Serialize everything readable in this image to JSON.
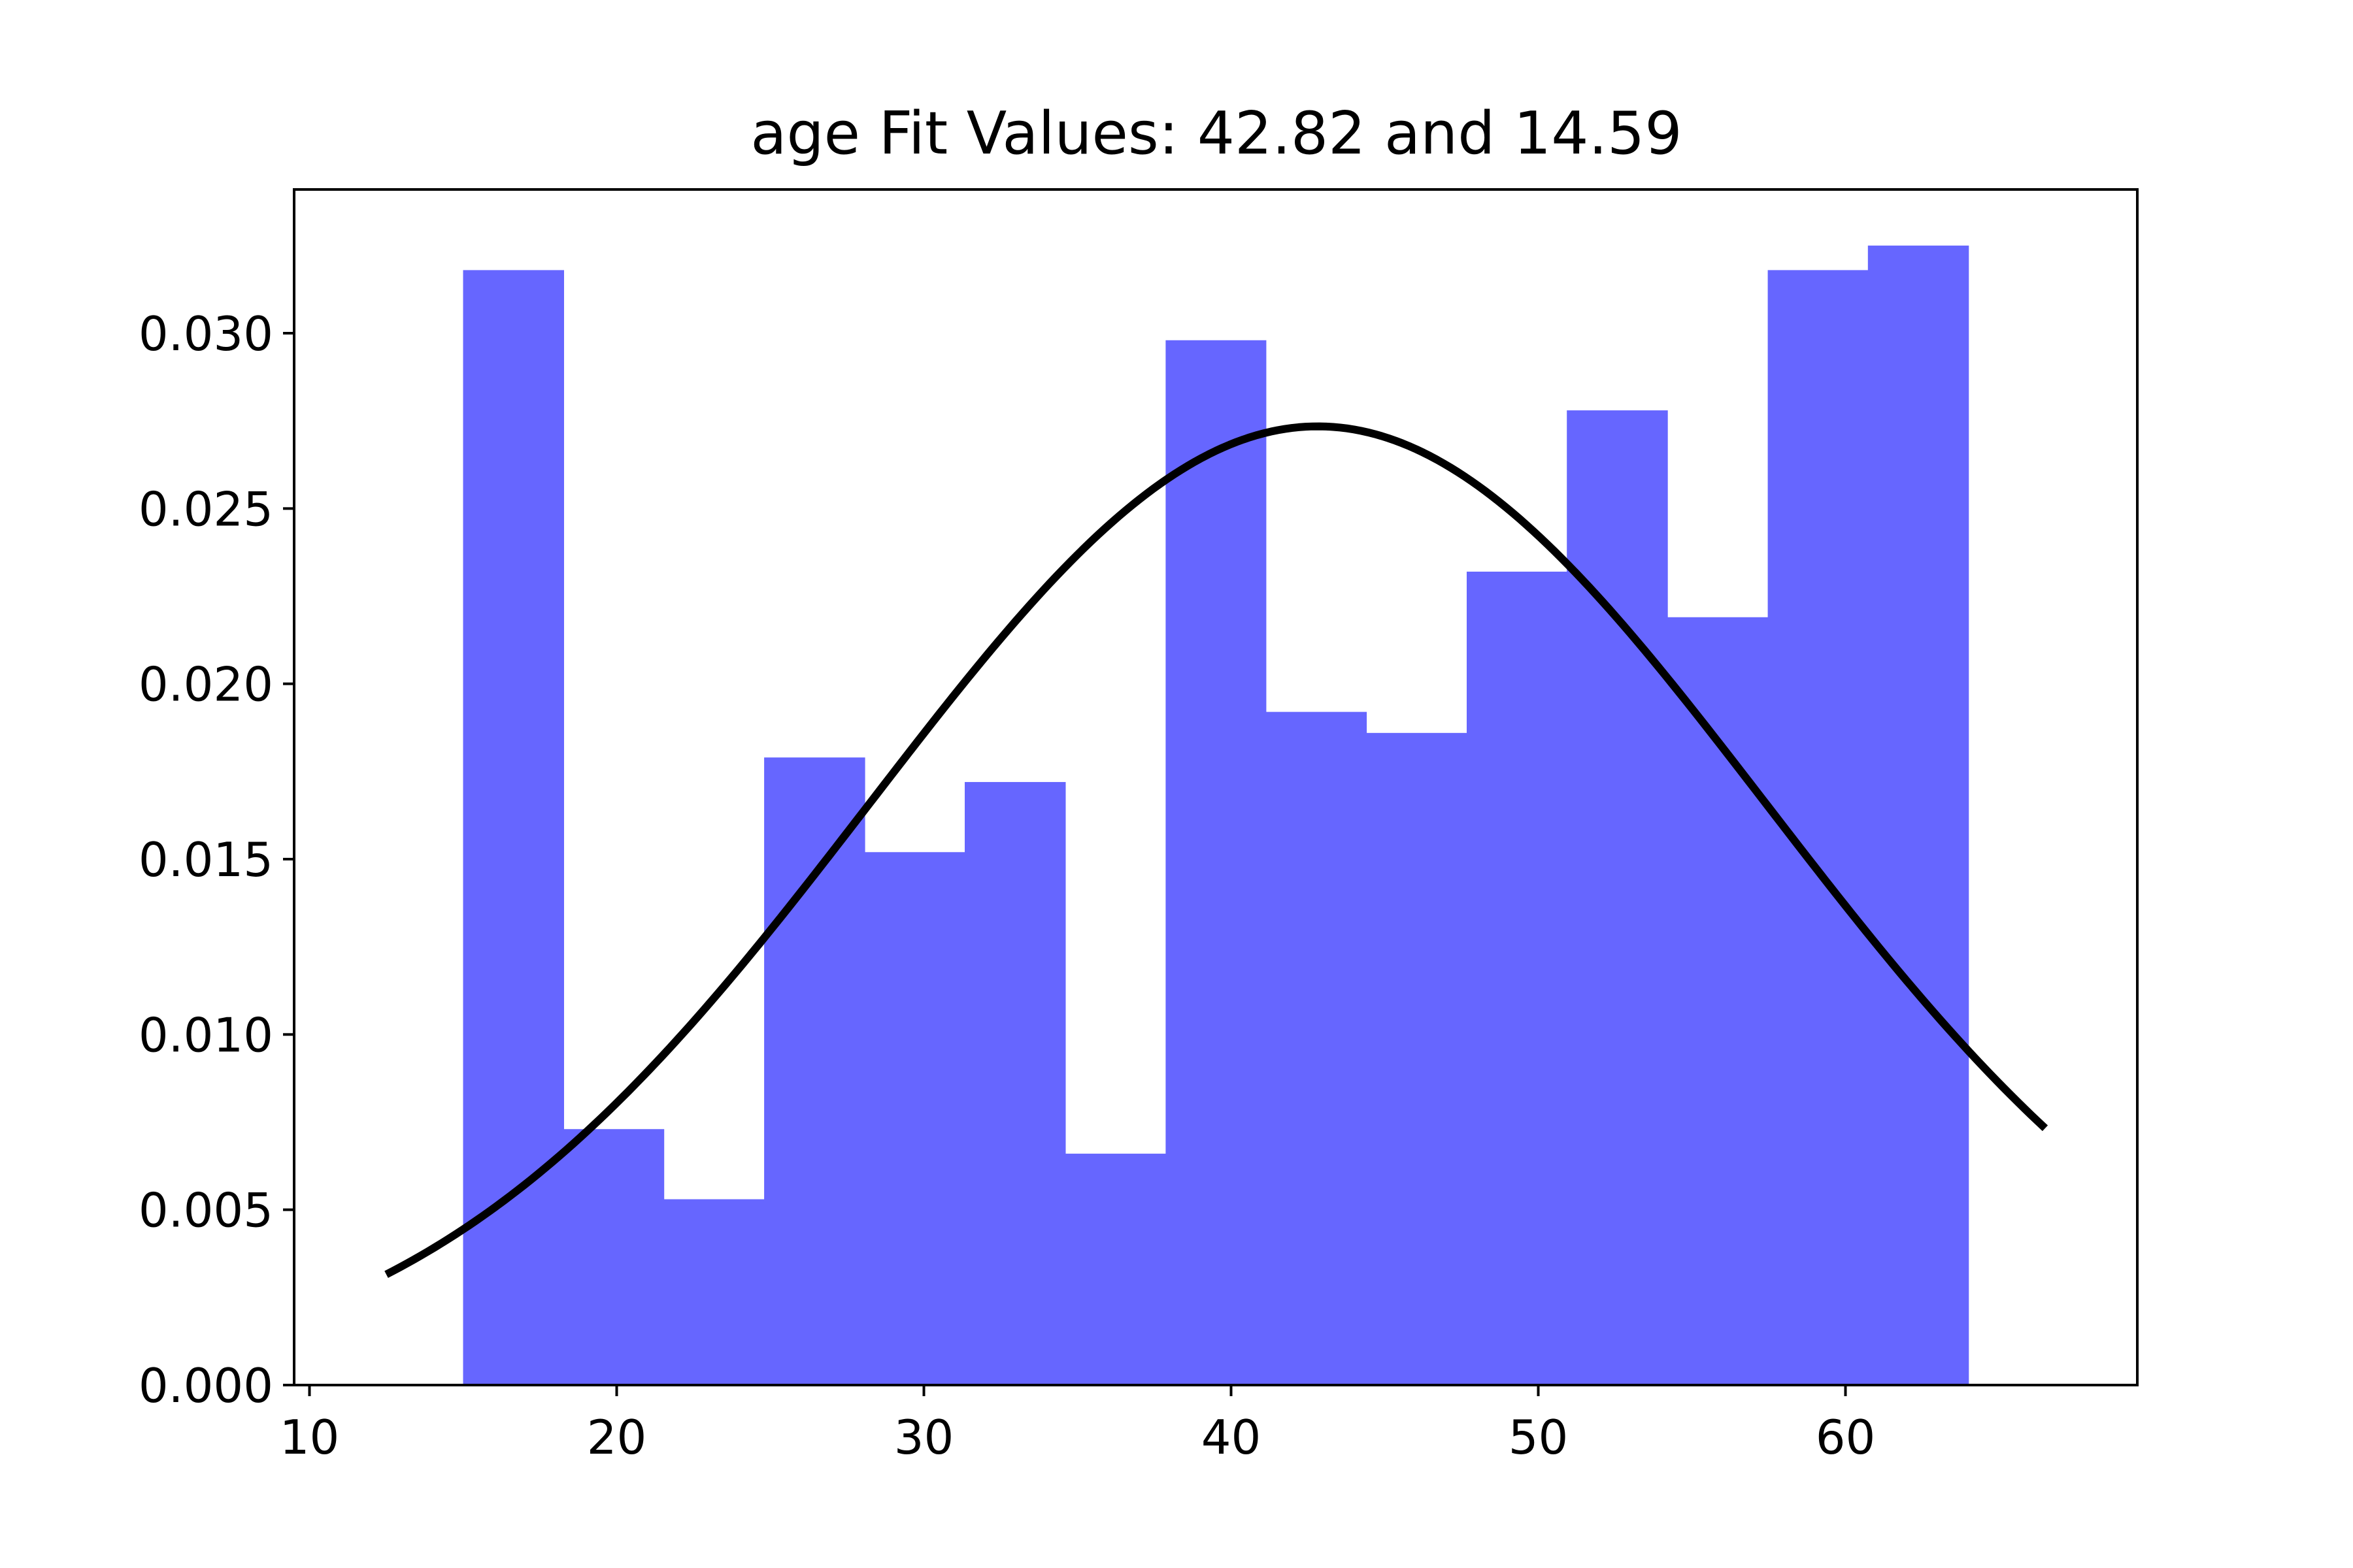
{
  "chart_data": {
    "type": "bar",
    "title": "age Fit Values: 42.82 and 14.59",
    "xlabel": "",
    "ylabel": "",
    "xlim": [
      9.5,
      69.5
    ],
    "ylim": [
      0,
      0.0341
    ],
    "xticks": [
      10,
      20,
      30,
      40,
      50,
      60
    ],
    "xtick_labels": [
      "10",
      "20",
      "30",
      "40",
      "50",
      "60"
    ],
    "yticks": [
      0,
      0.005,
      0.01,
      0.015,
      0.02,
      0.025,
      0.03
    ],
    "ytick_labels": [
      "0.000",
      "0.005",
      "0.010",
      "0.015",
      "0.020",
      "0.025",
      "0.030"
    ],
    "grid": false,
    "bar_color": "#6666ff",
    "histogram": {
      "bin_edges": [
        15.0,
        18.27,
        21.53,
        24.8,
        28.07,
        31.33,
        34.6,
        37.87,
        41.13,
        44.4,
        47.67,
        50.93,
        54.2,
        57.47,
        60.73,
        64.0
      ],
      "density": [
        0.0318,
        0.0073,
        0.0053,
        0.0179,
        0.0152,
        0.0172,
        0.0066,
        0.0298,
        0.0192,
        0.0186,
        0.0232,
        0.0278,
        0.0219,
        0.0318,
        0.0325
      ]
    },
    "fit": {
      "name": "",
      "mean": 42.82,
      "std": 14.59,
      "x_range": [
        12.5,
        66.5
      ],
      "color": "#000000"
    }
  }
}
